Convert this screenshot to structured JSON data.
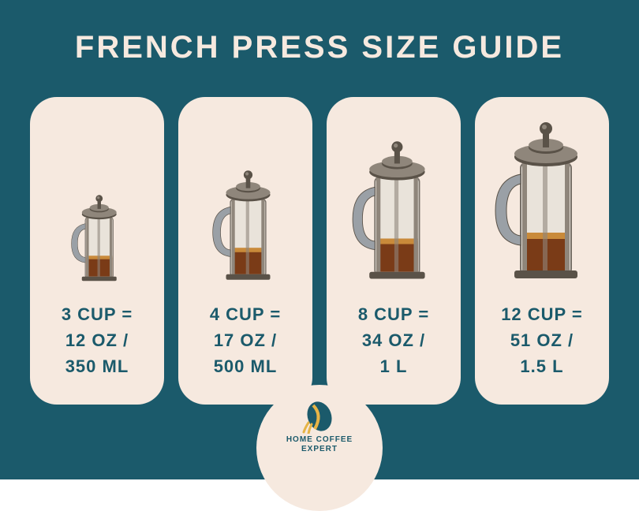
{
  "type": "infographic",
  "background_color": "#1b5a6b",
  "card_background": "#f6e9df",
  "title_color": "#f6e9df",
  "caption_color": "#1b5a6b",
  "title": "FRENCH PRESS SIZE GUIDE",
  "title_fontsize": 40,
  "caption_fontsize": 22,
  "card_border_radius": 34,
  "sizes": [
    {
      "line1": "3 CUP =",
      "line2": "12 OZ /",
      "line3": "350 ML",
      "press_scale": 0.55
    },
    {
      "line1": "4 CUP =",
      "line2": "17 OZ /",
      "line3": "500 ML",
      "press_scale": 0.7
    },
    {
      "line1": "8 CUP =",
      "line2": "34 OZ /",
      "line3": "1 L",
      "press_scale": 0.88
    },
    {
      "line1": "12 CUP =",
      "line2": "51 OZ /",
      "line3": "1.5 L",
      "press_scale": 1.0
    }
  ],
  "press_svg": {
    "glass_fill": "#e9e3da",
    "glass_stroke": "#777068",
    "coffee_fill": "#7a3b17",
    "coffee_top": "#c98a3a",
    "metal_fill": "#8f867b",
    "metal_dark": "#5a5248",
    "handle_fill": "#9aa0a6"
  },
  "logo": {
    "badge_fill": "#f6e9df",
    "bean_fill": "#1b5a6b",
    "bean_accent": "#e6b446",
    "line1": "HOME COFFEE",
    "line2": "EXPERT",
    "text_color": "#1b5a6b"
  }
}
